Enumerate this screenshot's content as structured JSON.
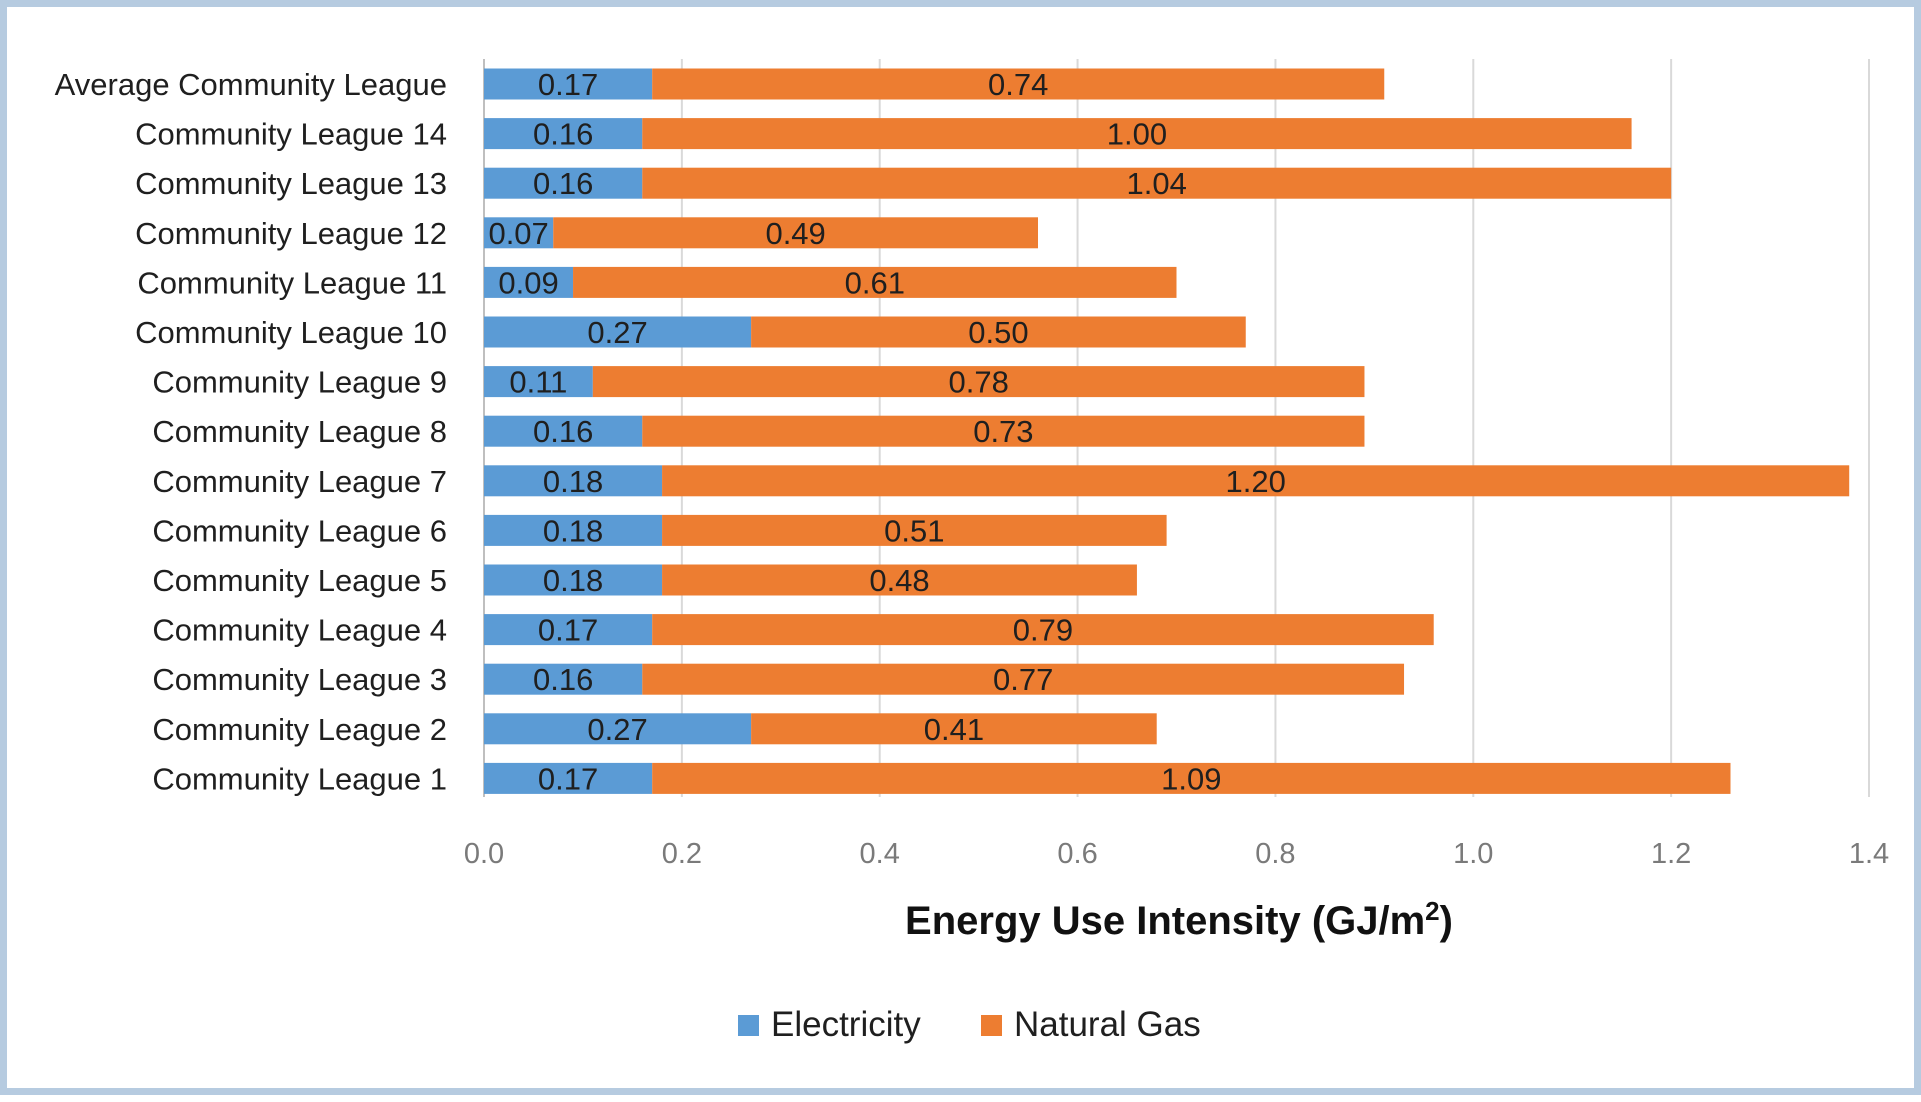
{
  "chart_data": {
    "type": "bar",
    "orientation": "horizontal",
    "stacked": true,
    "categories": [
      "Average Community League",
      "Community League 14",
      "Community League 13",
      "Community League 12",
      "Community League 11",
      "Community League 10",
      "Community League 9",
      "Community League 8",
      "Community League 7",
      "Community League 6",
      "Community League 5",
      "Community League 4",
      "Community League 3",
      "Community League 2",
      "Community League 1"
    ],
    "series": [
      {
        "name": "Electricity",
        "color": "#5b9bd5",
        "values": [
          0.17,
          0.16,
          0.16,
          0.07,
          0.09,
          0.27,
          0.11,
          0.16,
          0.18,
          0.18,
          0.18,
          0.17,
          0.16,
          0.27,
          0.17
        ],
        "labels": [
          "0.17",
          "0.16",
          "0.16",
          "0.07",
          "0.09",
          "0.27",
          "0.11",
          "0.16",
          "0.18",
          "0.18",
          "0.18",
          "0.17",
          "0.16",
          "0.27",
          "0.17"
        ]
      },
      {
        "name": "Natural Gas",
        "color": "#ed7d31",
        "values": [
          0.74,
          1.0,
          1.04,
          0.49,
          0.61,
          0.5,
          0.78,
          0.73,
          1.2,
          0.51,
          0.48,
          0.79,
          0.77,
          0.41,
          1.09
        ],
        "labels": [
          "0.74",
          "1.00",
          "1.04",
          "0.49",
          "0.61",
          "0.50",
          "0.78",
          "0.73",
          "1.20",
          "0.51",
          "0.48",
          "0.79",
          "0.77",
          "0.41",
          "1.09"
        ]
      }
    ],
    "xlabel_main": "Energy Use Intensity (GJ/m",
    "xlabel_sup": "2",
    "xlabel_end": ")",
    "xlim": [
      0,
      1.4
    ],
    "xticks": [
      "0.0",
      "0.2",
      "0.4",
      "0.6",
      "0.8",
      "1.0",
      "1.2",
      "1.4"
    ],
    "grid": "vertical",
    "legend": "bottom"
  }
}
